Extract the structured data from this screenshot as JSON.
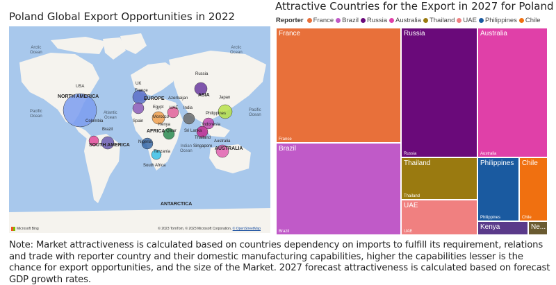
{
  "left_chart": {
    "title": "Poland Global Export Opportunities in 2022",
    "map_labels": {
      "oceans": [
        {
          "name": "arctic-ocean-west",
          "text": "Arctic\nOcean"
        },
        {
          "name": "arctic-ocean-east",
          "text": "Arctic\nOcean"
        },
        {
          "name": "pacific-ocean-west",
          "text": "Pacific\nOcean"
        },
        {
          "name": "atlantic-ocean",
          "text": "Atlantic\nOcean"
        },
        {
          "name": "indian-ocean",
          "text": "Indian\nOcean"
        },
        {
          "name": "pacific-ocean-east",
          "text": "Pacific\nOcean"
        }
      ],
      "continents": [
        "NORTH AMERICA",
        "EUROPE",
        "ASIA",
        "AFRICA",
        "SOUTH AMERICA",
        "AUSTRALIA",
        "ANTARCTICA"
      ],
      "countries": [
        "USA",
        "UK",
        "France",
        "Russia",
        "Japan",
        "Philippines",
        "India",
        "Spain",
        "Egypt",
        "UAE",
        "Qatar",
        "Nigeria",
        "Kenya",
        "Tanzania",
        "South Africa",
        "Colombia",
        "Brazil",
        "Thailand",
        "Singapore",
        "Indonesia",
        "Australia",
        "Morocco",
        "Azerbaijan",
        "Sri Lanka"
      ]
    },
    "bubbles": [
      {
        "country": "USA",
        "color": "#7b9cf0"
      },
      {
        "country": "UK",
        "color": "#5a6fc8"
      },
      {
        "country": "Russia",
        "color": "#6a3aa0"
      },
      {
        "country": "Japan",
        "color": "#b7e04a"
      },
      {
        "country": "Philippines",
        "color": "#c04ab0"
      },
      {
        "country": "India",
        "color": "#6c6c6c"
      },
      {
        "country": "Spain",
        "color": "#8a5ab8"
      },
      {
        "country": "Egypt",
        "color": "#f0a050"
      },
      {
        "country": "UAE",
        "color": "#e0609a"
      },
      {
        "country": "Nigeria",
        "color": "#3a6aa8"
      },
      {
        "country": "Kenya",
        "color": "#2a8a50"
      },
      {
        "country": "Tanzania",
        "color": "#38c0e8"
      },
      {
        "country": "Colombia",
        "color": "#e04a9a"
      },
      {
        "country": "Brazil",
        "color": "#6a5ab0"
      },
      {
        "country": "Australia",
        "color": "#e060b0"
      },
      {
        "country": "Indonesia",
        "color": "#c02a90"
      }
    ],
    "attribution": "© 2023 TomTom, © 2023 Microsoft Corporation,",
    "attribution_link": "© OpenStreetMap",
    "provider": "Microsoft Bing"
  },
  "chart_data": {
    "type": "treemap",
    "title": "Attractive Countries for the Export in 2027 for Poland",
    "legend_title": "Reporter",
    "legend": [
      {
        "name": "France",
        "color": "#e8703a"
      },
      {
        "name": "Brazil",
        "color": "#c05ac8"
      },
      {
        "name": "Russia",
        "color": "#6a0a7a"
      },
      {
        "name": "Australia",
        "color": "#e040a8"
      },
      {
        "name": "Thailand",
        "color": "#9a7a10"
      },
      {
        "name": "UAE",
        "color": "#f08080"
      },
      {
        "name": "Philippines",
        "color": "#1a5aa0"
      },
      {
        "name": "Chile",
        "color": "#f07010"
      }
    ],
    "tiles": [
      {
        "name": "France",
        "label": "France",
        "sub": "France",
        "color": "#e8703a"
      },
      {
        "name": "Brazil",
        "label": "Brazil",
        "sub": "Brazil",
        "color": "#c05ac8"
      },
      {
        "name": "Russia",
        "label": "Russia",
        "sub": "Russia",
        "color": "#6a0a7a"
      },
      {
        "name": "Australia",
        "label": "Australia",
        "sub": "Australia",
        "color": "#e040a8"
      },
      {
        "name": "Thailand",
        "label": "Thailand",
        "sub": "Thailand",
        "color": "#9a7a10"
      },
      {
        "name": "UAE",
        "label": "UAE",
        "sub": "UAE",
        "color": "#f08080"
      },
      {
        "name": "Philippines",
        "label": "Philippines",
        "sub": "Philippines",
        "color": "#1a5aa0"
      },
      {
        "name": "Chile",
        "label": "Chile",
        "sub": "Chile",
        "color": "#f07010"
      },
      {
        "name": "Kenya",
        "label": "Kenya",
        "sub": "",
        "color": "#5a3a8a"
      },
      {
        "name": "Ne",
        "label": "Ne...",
        "sub": "",
        "color": "#6a5a30"
      }
    ]
  },
  "note": "Note: Market attractiveness is calculated based on countries dependency on imports to fulfill its requirement, relations and trade with reporter country and their domestic manufacturing capabilities, higher the capabilities lesser is the chance for export opportunities, and the size of the Market. 2027 forecast attractiveness is calculated based on forecast GDP growth rates."
}
